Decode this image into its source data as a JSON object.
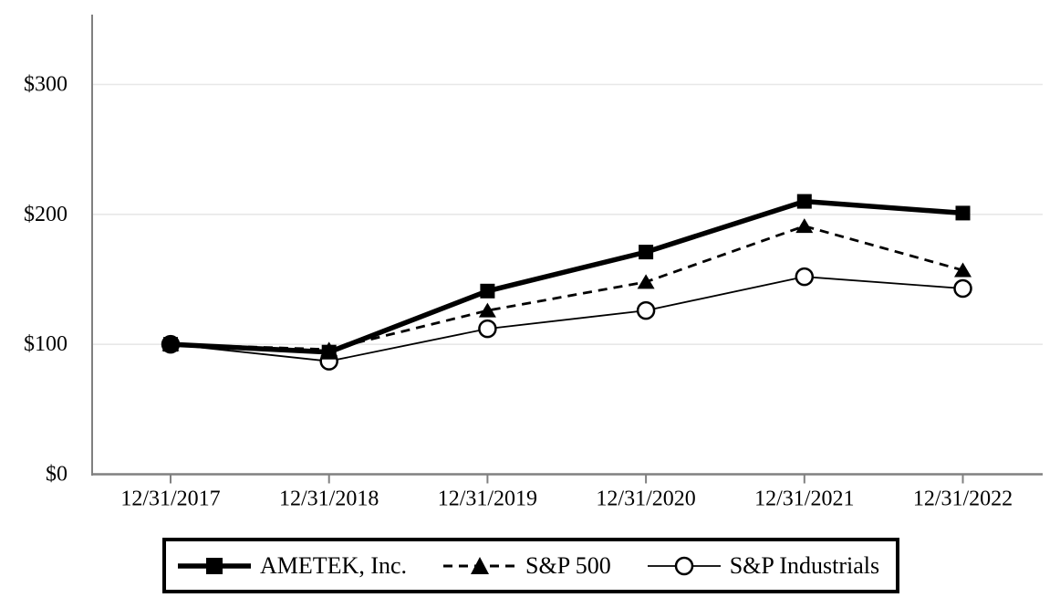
{
  "chart_data": {
    "type": "line",
    "title": "",
    "xlabel": "",
    "ylabel": "",
    "x": [
      "12/31/2017",
      "12/31/2018",
      "12/31/2019",
      "12/31/2020",
      "12/31/2021",
      "12/31/2022"
    ],
    "series": [
      {
        "name": "AMETEK, Inc.",
        "values": [
          100,
          94,
          141,
          171,
          210,
          201
        ],
        "line": "solid-thick",
        "marker": "square-filled"
      },
      {
        "name": "S&P 500",
        "values": [
          100,
          96,
          126,
          148,
          191,
          157
        ],
        "line": "dashed",
        "marker": "triangle-filled"
      },
      {
        "name": "S&P Industrials",
        "values": [
          100,
          87,
          112,
          126,
          152,
          143
        ],
        "line": "solid-thin",
        "marker": "circle-open"
      }
    ],
    "y_ticks": [
      "$0",
      "$100",
      "$200",
      "$300"
    ],
    "y_tick_values": [
      0,
      100,
      200,
      300
    ],
    "ylim": [
      0,
      350
    ],
    "grid": "horizontal-only",
    "legend_position": "bottom",
    "colors": {
      "series": "#000000",
      "axis": "#808080",
      "gridline": "#e8e8e8",
      "text": "#000000",
      "background": "#ffffff",
      "legend_border": "#000000"
    }
  }
}
